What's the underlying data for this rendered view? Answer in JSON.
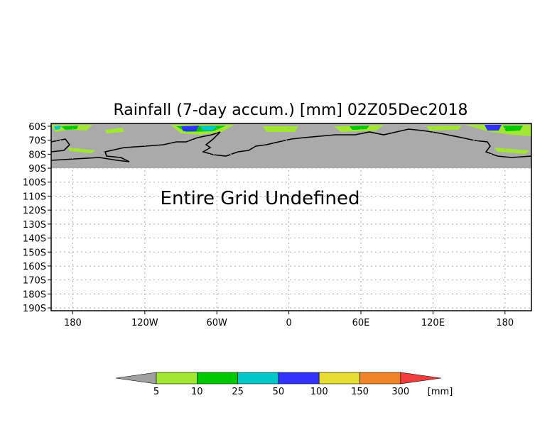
{
  "chart_data": {
    "type": "heatmap",
    "title": "Rainfall (7-day accum.) [mm] 02Z05Dec2018",
    "message": "Entire Grid Undefined",
    "y_ticks": [
      "60S",
      "70S",
      "80S",
      "90S",
      "100S",
      "110S",
      "120S",
      "130S",
      "140S",
      "150S",
      "160S",
      "170S",
      "180S",
      "190S"
    ],
    "x_ticks": [
      "180",
      "120W",
      "60W",
      "0",
      "60E",
      "120E",
      "180"
    ],
    "x_tick_lon": [
      -180,
      -120,
      -60,
      0,
      60,
      120,
      180
    ],
    "x_range_lon": [
      -198,
      202
    ],
    "y_range_lat": [
      -58,
      -192
    ],
    "grid": true,
    "undefined_band_lat": [
      -58,
      -90
    ],
    "undefined_color": "#aaaaaa",
    "colorbar": {
      "labels": [
        "5",
        "10",
        "25",
        "50",
        "100",
        "150",
        "300"
      ],
      "unit": "[mm]",
      "under_color": "#a0a0a0",
      "colors": [
        "#a0e632",
        "#00c800",
        "#00c8c8",
        "#3232ff",
        "#e6dc32",
        "#f08228",
        "#f03c3c"
      ]
    }
  }
}
